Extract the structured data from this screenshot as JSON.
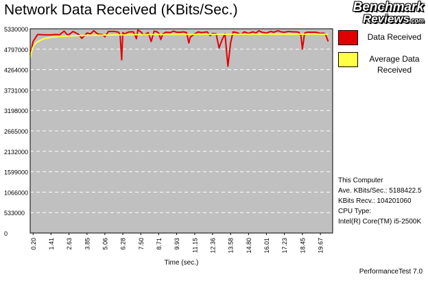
{
  "title": "Network Data Received (KBits/Sec.)",
  "logo": {
    "line1": "Benchmark",
    "line2": "Reviews",
    "suffix": ".com"
  },
  "legend": [
    {
      "label": "Data Received",
      "color": "#e00000"
    },
    {
      "label": "Average Data Received",
      "color": "#ffff44"
    }
  ],
  "info": {
    "computer": "This Computer",
    "ave": "Ave. KBits/Sec.: 5188422.5",
    "recv": "KBits Recv.: 104201060",
    "cpu_label": "CPU Type:",
    "cpu": "Intel(R) Core(TM) i5-2500K"
  },
  "footer": "PerformanceTest 7.0",
  "chart_data": {
    "type": "line",
    "title": "Network Data Received (KBits/Sec.)",
    "xlabel": "Time (sec.)",
    "ylabel": "",
    "ylim": [
      0,
      5330000
    ],
    "xlim": [
      0,
      20.5
    ],
    "y_ticks": [
      "0",
      "533000",
      "1066000",
      "1599000",
      "2132000",
      "2665000",
      "3198000",
      "3731000",
      "4264000",
      "4797000",
      "5330000"
    ],
    "x_ticks": [
      "0.20",
      "1.41",
      "2.63",
      "3.85",
      "5.06",
      "6.28",
      "7.50",
      "8.71",
      "9.93",
      "11.15",
      "12.36",
      "13.58",
      "14.80",
      "16.01",
      "17.23",
      "18.45",
      "19.67"
    ],
    "grid": true,
    "plot_background": "#c0c0c0",
    "series": [
      {
        "name": "Data Received",
        "color": "#e00000",
        "x": [
          0.0,
          0.2,
          0.5,
          1.0,
          1.41,
          1.7,
          2.0,
          2.3,
          2.5,
          2.63,
          2.9,
          3.3,
          3.5,
          3.85,
          4.1,
          4.3,
          4.6,
          4.9,
          5.06,
          5.3,
          5.7,
          6.0,
          6.1,
          6.2,
          6.28,
          6.4,
          6.7,
          7.0,
          7.2,
          7.3,
          7.5,
          7.7,
          8.0,
          8.2,
          8.4,
          8.6,
          8.71,
          8.85,
          9.0,
          9.2,
          9.5,
          9.7,
          9.93,
          10.2,
          10.4,
          10.6,
          10.75,
          10.85,
          11.15,
          11.4,
          11.6,
          12.0,
          12.2,
          12.36,
          12.6,
          12.8,
          13.0,
          13.2,
          13.4,
          13.58,
          13.75,
          14.0,
          14.3,
          14.5,
          14.8,
          15.1,
          15.3,
          15.5,
          15.7,
          16.01,
          16.3,
          16.5,
          16.8,
          17.0,
          17.23,
          17.5,
          17.8,
          18.0,
          18.2,
          18.35,
          18.45,
          18.6,
          18.8,
          19.0,
          19.3,
          19.5,
          19.67,
          19.85,
          20.0,
          20.2
        ],
        "values": [
          4650000,
          5000000,
          5180000,
          5170000,
          5170000,
          5180000,
          5175000,
          5270000,
          5180000,
          5180000,
          5260000,
          5180000,
          5080000,
          5220000,
          5200000,
          5280000,
          5190000,
          5180000,
          5120000,
          5260000,
          5260000,
          5240000,
          5150000,
          4520000,
          5230000,
          5200000,
          5250000,
          5250000,
          5070000,
          5300000,
          5250000,
          5170000,
          5230000,
          5000000,
          5270000,
          5250000,
          5220000,
          5050000,
          5200000,
          5240000,
          5230000,
          5270000,
          5240000,
          5240000,
          5250000,
          5230000,
          4960000,
          5110000,
          5200000,
          5250000,
          5230000,
          5250000,
          5150000,
          5210000,
          5200000,
          4830000,
          5040000,
          5200000,
          4350000,
          4950000,
          5250000,
          5230000,
          5180000,
          5250000,
          5210000,
          5250000,
          5220000,
          5280000,
          5240000,
          5220000,
          5260000,
          5240000,
          5280000,
          5250000,
          5240000,
          5260000,
          5250000,
          5250000,
          5240000,
          5160000,
          4800000,
          5220000,
          5240000,
          5240000,
          5240000,
          5230000,
          5210000,
          5220000,
          5200000,
          5000000
        ]
      },
      {
        "name": "Average Data Received",
        "color": "#ffff44",
        "x": [
          0.0,
          0.15,
          0.3,
          0.5,
          0.8,
          1.0,
          1.5,
          2.0,
          3.0,
          4.0,
          6.0,
          8.0,
          12.0,
          16.0,
          20.2
        ],
        "values": [
          4560000,
          4820000,
          4920000,
          4990000,
          5050000,
          5080000,
          5110000,
          5130000,
          5150000,
          5160000,
          5170000,
          5180000,
          5185000,
          5188000,
          5188400
        ]
      }
    ]
  }
}
